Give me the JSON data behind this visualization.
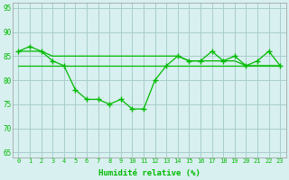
{
  "x": [
    0,
    1,
    2,
    3,
    4,
    5,
    6,
    7,
    8,
    9,
    10,
    11,
    12,
    13,
    14,
    15,
    16,
    17,
    18,
    19,
    20,
    21,
    22,
    23
  ],
  "line_zigzag": [
    86,
    87,
    86,
    84,
    83,
    78,
    76,
    76,
    75,
    76,
    74,
    74,
    80,
    83,
    85,
    84,
    84,
    86,
    84,
    85,
    83,
    84,
    86,
    83
  ],
  "line_trend": [
    86,
    86,
    86,
    85,
    85,
    85,
    85,
    85,
    85,
    85,
    85,
    85,
    85,
    85,
    85,
    84,
    84,
    84,
    84,
    84,
    83,
    83,
    83,
    83
  ],
  "line_flat": [
    83,
    83,
    83,
    83,
    83,
    83,
    83,
    83,
    83,
    83,
    83,
    83,
    83,
    83,
    83,
    83,
    83,
    83,
    83,
    83,
    83,
    83,
    83,
    83
  ],
  "bg_color": "#d8f0f0",
  "grid_color": "#aacccc",
  "line_color": "#00bb00",
  "xlabel": "Humidité relative (%)",
  "ylim": [
    64,
    96
  ],
  "xlim": [
    -0.5,
    23.5
  ],
  "yticks": [
    65,
    70,
    75,
    80,
    85,
    90,
    95
  ],
  "xticks": [
    0,
    1,
    2,
    3,
    4,
    5,
    6,
    7,
    8,
    9,
    10,
    11,
    12,
    13,
    14,
    15,
    16,
    17,
    18,
    19,
    20,
    21,
    22,
    23
  ]
}
